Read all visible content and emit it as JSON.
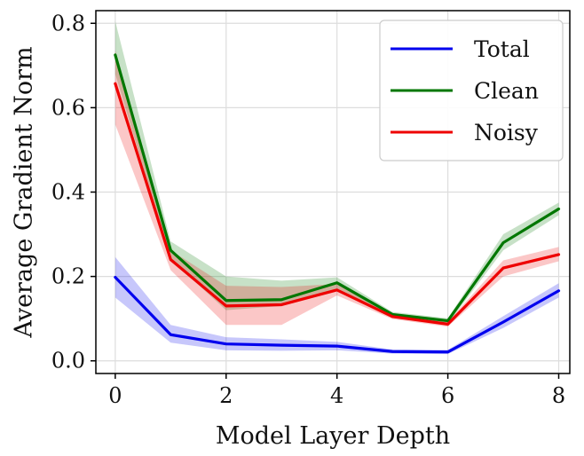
{
  "chart_data": {
    "type": "line",
    "title": "",
    "xlabel": "Model Layer Depth",
    "ylabel": "Average Gradient Norm",
    "xlim": [
      -0.35,
      8.2
    ],
    "ylim": [
      -0.03,
      0.83
    ],
    "x": [
      0,
      1,
      2,
      3,
      4,
      5,
      6,
      7,
      8
    ],
    "xticks": [
      0,
      2,
      4,
      6,
      8
    ],
    "xtick_labels": [
      "0",
      "2",
      "4",
      "6",
      "8"
    ],
    "yticks": [
      0.0,
      0.2,
      0.4,
      0.6,
      0.8
    ],
    "ytick_labels": [
      "0.0",
      "0.2",
      "0.4",
      "0.6",
      "0.8"
    ],
    "grid": true,
    "legend_position": "top-right",
    "series": [
      {
        "name": "Total",
        "color": "#0000ee",
        "values": [
          0.198,
          0.062,
          0.04,
          0.037,
          0.035,
          0.022,
          0.021,
          0.092,
          0.166
        ],
        "lower": [
          0.15,
          0.043,
          0.025,
          0.024,
          0.025,
          0.017,
          0.016,
          0.078,
          0.15
        ],
        "upper": [
          0.246,
          0.085,
          0.056,
          0.051,
          0.045,
          0.027,
          0.026,
          0.106,
          0.184
        ]
      },
      {
        "name": "Clean",
        "color": "#007700",
        "values": [
          0.725,
          0.262,
          0.143,
          0.145,
          0.185,
          0.11,
          0.095,
          0.28,
          0.36
        ],
        "lower": [
          0.68,
          0.24,
          0.12,
          0.13,
          0.172,
          0.104,
          0.088,
          0.262,
          0.345
        ],
        "upper": [
          0.805,
          0.283,
          0.2,
          0.19,
          0.198,
          0.116,
          0.101,
          0.3,
          0.375
        ]
      },
      {
        "name": "Noisy",
        "color": "#ee0000",
        "values": [
          0.657,
          0.24,
          0.13,
          0.133,
          0.168,
          0.105,
          0.087,
          0.22,
          0.252
        ],
        "lower": [
          0.56,
          0.215,
          0.085,
          0.085,
          0.155,
          0.099,
          0.081,
          0.2,
          0.236
        ],
        "upper": [
          0.735,
          0.262,
          0.178,
          0.175,
          0.182,
          0.111,
          0.093,
          0.238,
          0.27
        ]
      }
    ]
  }
}
